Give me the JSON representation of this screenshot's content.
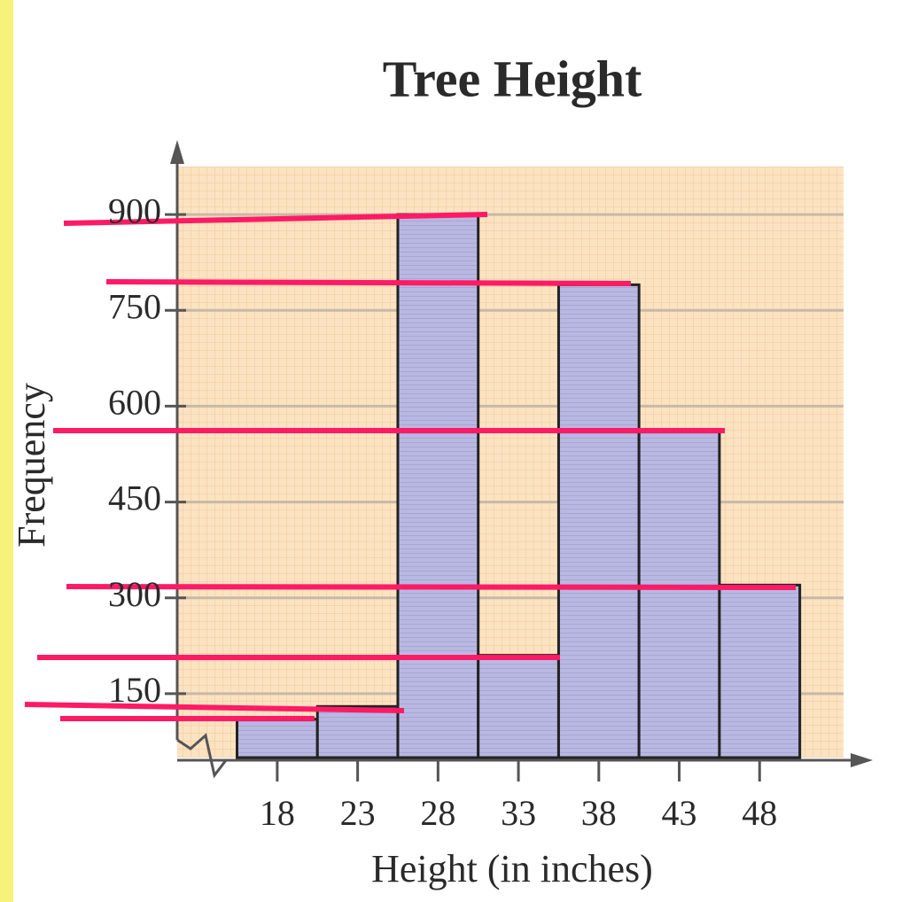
{
  "chart_data": {
    "type": "histogram",
    "title": "Tree Height",
    "xlabel": "Height (in inches)",
    "ylabel": "Frequency",
    "bins": [
      15.5,
      20.5,
      25.5,
      30.5,
      35.5,
      40.5,
      45.5,
      50.5
    ],
    "values": [
      110,
      130,
      900,
      210,
      790,
      560,
      320
    ],
    "color": "#b8b8e2",
    "xlim": [
      12,
      53
    ],
    "xticks": [
      18,
      23,
      28,
      33,
      38,
      43,
      48
    ],
    "ylim": [
      50,
      975
    ],
    "yticks": [
      150,
      300,
      450,
      600,
      750,
      900
    ],
    "grid": true
  }
}
